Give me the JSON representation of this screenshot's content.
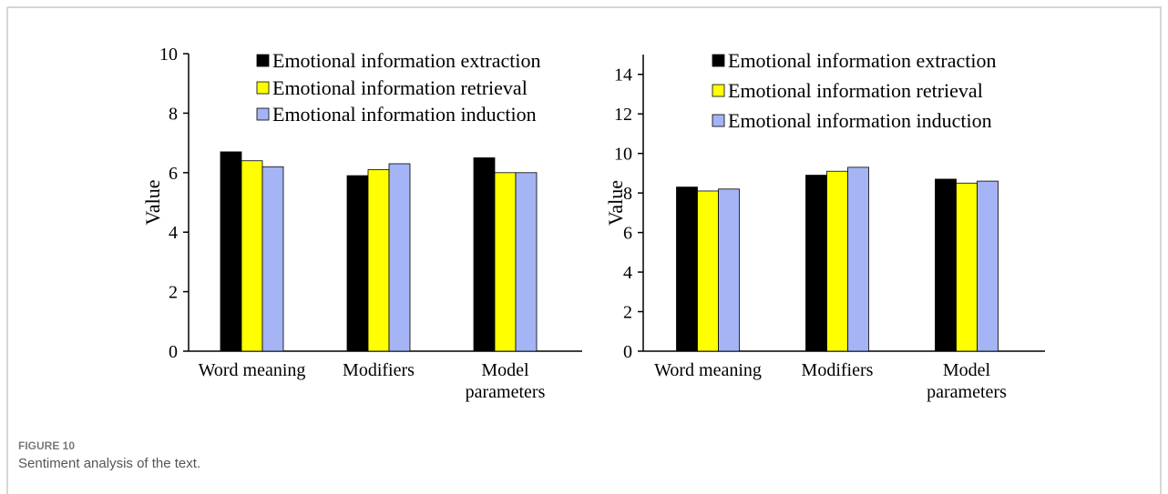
{
  "chart_data": [
    {
      "type": "bar",
      "ylabel": "Value",
      "categories": [
        "Word meaning",
        "Modifiers",
        "Model parameters"
      ],
      "series": [
        {
          "name": "Emotional information extraction",
          "color": "#000000",
          "values": [
            6.7,
            5.9,
            6.5
          ]
        },
        {
          "name": "Emotional information retrieval",
          "color": "#ffff00",
          "values": [
            6.4,
            6.1,
            6.0
          ]
        },
        {
          "name": "Emotional information induction",
          "color": "#a4b4f4",
          "values": [
            6.2,
            6.3,
            6.0
          ]
        }
      ],
      "ylim": [
        0,
        10
      ],
      "yticks": [
        0,
        2,
        4,
        6,
        8,
        10
      ],
      "legend": "top-right"
    },
    {
      "type": "bar",
      "ylabel": "Value",
      "categories": [
        "Word meaning",
        "Modifiers",
        "Model parameters"
      ],
      "series": [
        {
          "name": "Emotional information extraction",
          "color": "#000000",
          "values": [
            8.3,
            8.9,
            8.7
          ]
        },
        {
          "name": "Emotional information retrieval",
          "color": "#ffff00",
          "values": [
            8.1,
            9.1,
            8.5
          ]
        },
        {
          "name": "Emotional information induction",
          "color": "#a4b4f4",
          "values": [
            8.2,
            9.3,
            8.6
          ]
        }
      ],
      "ylim": [
        0,
        15
      ],
      "yticks": [
        0,
        2,
        4,
        6,
        8,
        10,
        12,
        14
      ],
      "legend": "top-right"
    }
  ],
  "figure": {
    "label": "FIGURE 10",
    "caption": "Sentiment analysis of the text."
  }
}
